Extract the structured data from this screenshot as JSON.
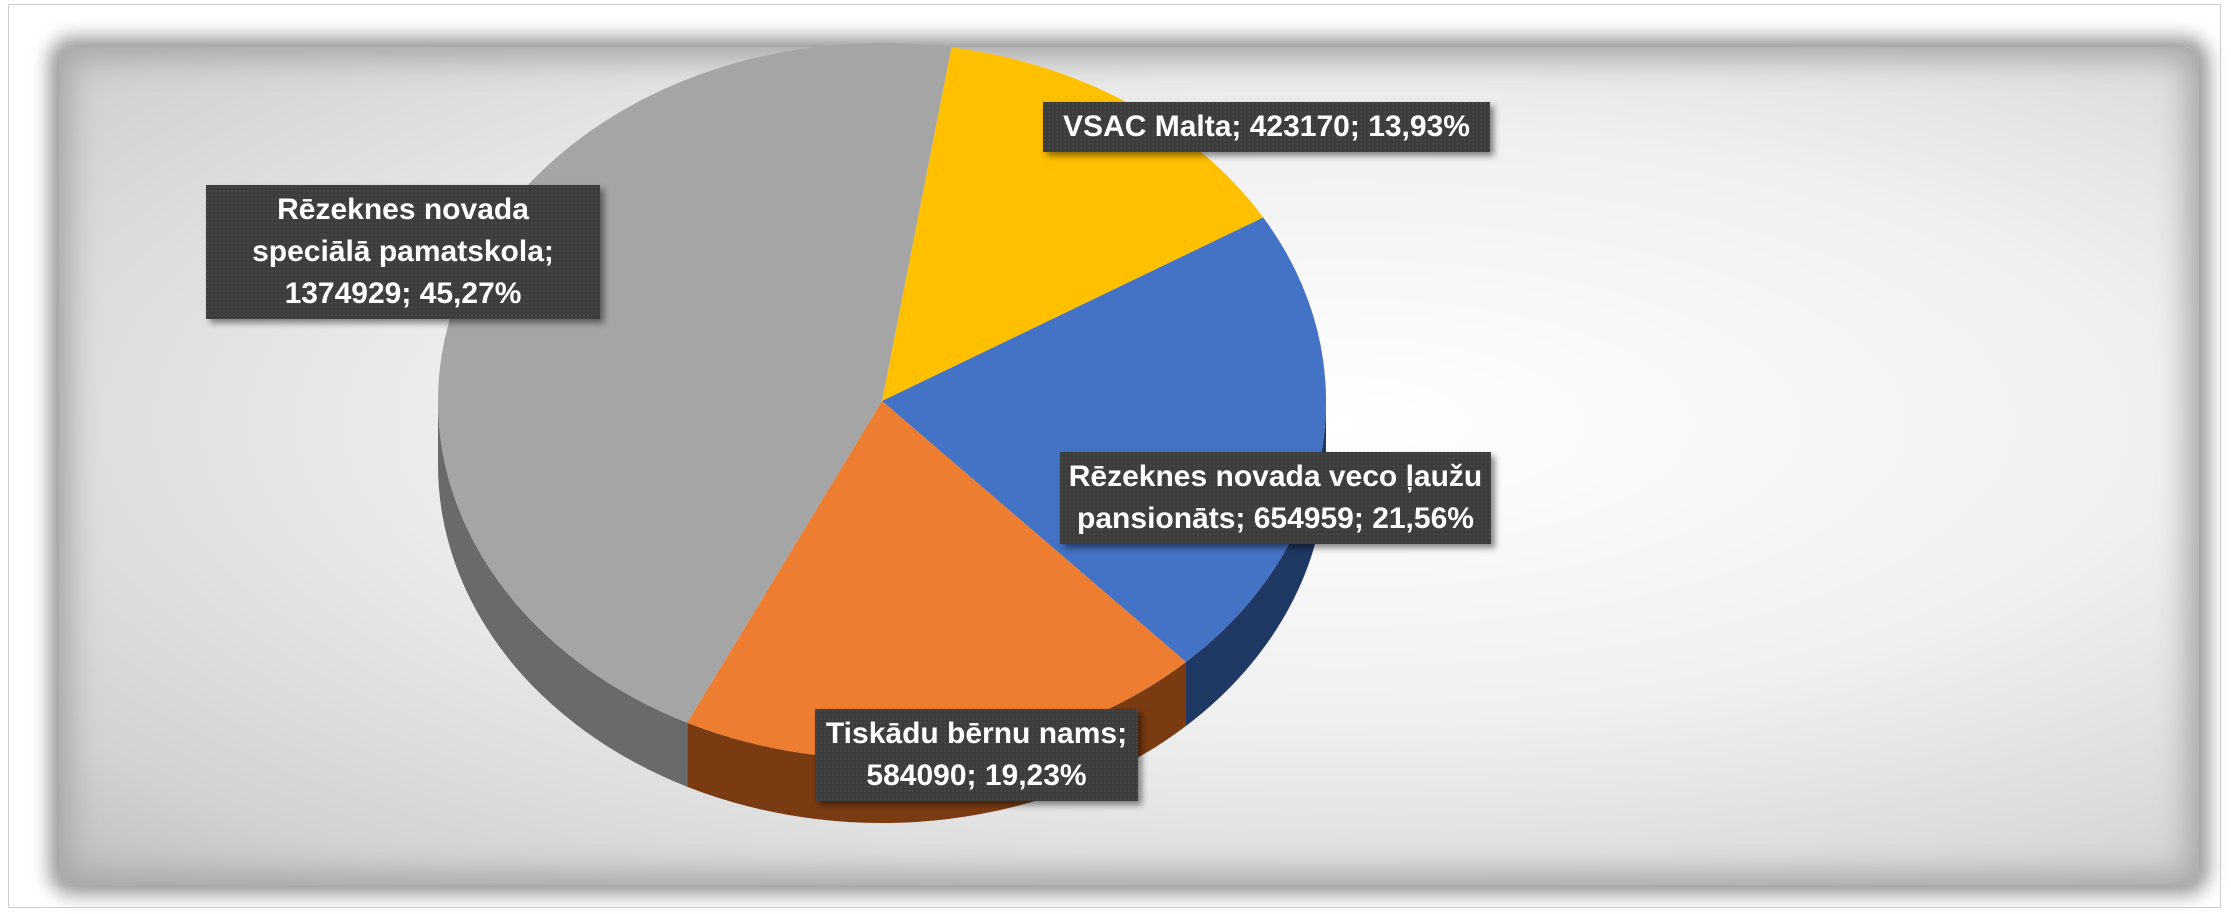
{
  "chart_data": {
    "type": "pie3d",
    "categories": [
      "VSAC Malta",
      "Rēzeknes novada veco ļaužu pansionāts",
      "Tiskādu bērnu nams",
      "Rēzeknes novada speciālā pamatskola"
    ],
    "values": [
      423170,
      654959,
      584090,
      1374929
    ],
    "percentages": [
      13.93,
      21.56,
      19.23,
      45.27
    ],
    "percentage_labels": [
      "13,93%",
      "21,56%",
      "19,23%",
      "45,27%"
    ],
    "label_separator": "; ",
    "colors": [
      "#ffc000",
      "#4472c4",
      "#ed7d31",
      "#a5a5a5"
    ],
    "side_colors": [
      "#8a6a00",
      "#1f3864",
      "#7a3a12",
      "#6a6a6a"
    ]
  }
}
